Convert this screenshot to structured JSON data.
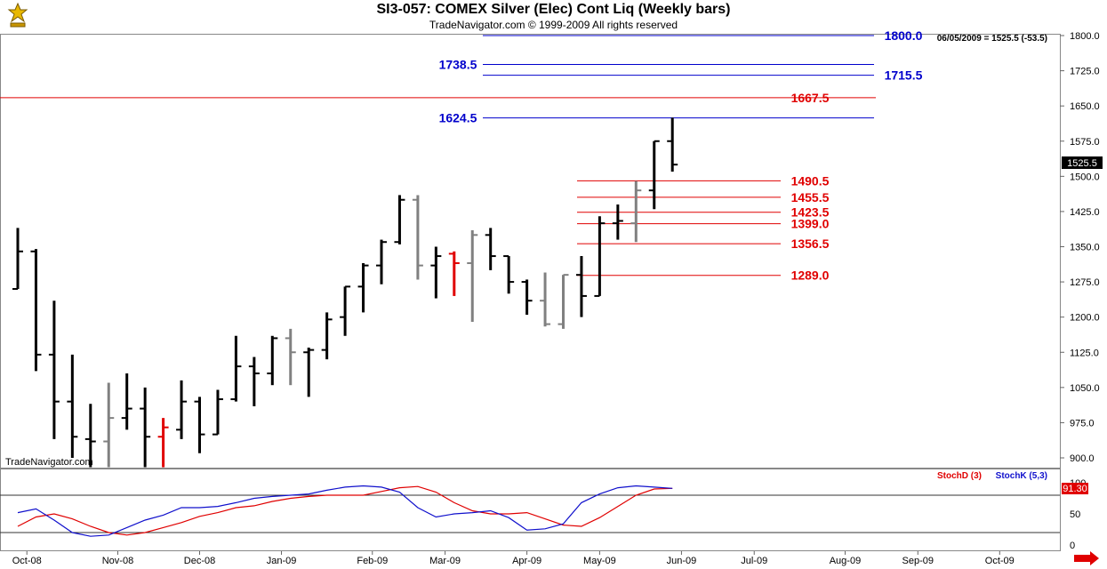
{
  "header": {
    "title": "SI3-057:  COMEX Silver (Elec) Cont Liq  (Weekly bars)",
    "subtitle": "TradeNavigator.com © 1999-2009 All rights reserved"
  },
  "watermark": "TradeNavigator.com",
  "chart_data": [
    {
      "type": "ohlc",
      "price_readout": "06/05/2009 = 1525.5 (-53.5)",
      "last_price_label": "1525.5",
      "ylim": [
        880,
        1810
      ],
      "y_ticks": [
        "1800.0",
        "1725.0",
        "1650.0",
        "1575.0",
        "1500.0",
        "1425.0",
        "1350.0",
        "1275.0",
        "1200.0",
        "1125.0",
        "1050.0",
        "975.0",
        "900.0"
      ],
      "x_ticks": [
        {
          "label": "Oct-08",
          "week": 1
        },
        {
          "label": "Nov-08",
          "week": 6
        },
        {
          "label": "Dec-08",
          "week": 10.5
        },
        {
          "label": "Jan-09",
          "week": 15
        },
        {
          "label": "Feb-09",
          "week": 20
        },
        {
          "label": "Mar-09",
          "week": 24
        },
        {
          "label": "Apr-09",
          "week": 28.5
        },
        {
          "label": "May-09",
          "week": 32.5
        },
        {
          "label": "Jun-09",
          "week": 37
        },
        {
          "label": "Jul-09",
          "week": 41
        },
        {
          "label": "Aug-09",
          "week": 46
        },
        {
          "label": "Sep-09",
          "week": 50
        },
        {
          "label": "Oct-09",
          "week": 54.5
        }
      ],
      "bars": [
        {
          "o": 1260,
          "h": 1390,
          "l": 1260,
          "c": 1340,
          "color": "black"
        },
        {
          "o": 1340,
          "h": 1345,
          "l": 1085,
          "c": 1120,
          "color": "black"
        },
        {
          "o": 1120,
          "h": 1235,
          "l": 940,
          "c": 1020,
          "color": "black"
        },
        {
          "o": 1020,
          "h": 1120,
          "l": 900,
          "c": 945,
          "color": "black"
        },
        {
          "o": 940,
          "h": 1015,
          "l": 880,
          "c": 935,
          "color": "black"
        },
        {
          "o": 935,
          "h": 1060,
          "l": 880,
          "c": 985,
          "color": "gray"
        },
        {
          "o": 985,
          "h": 1080,
          "l": 960,
          "c": 1005,
          "color": "black"
        },
        {
          "o": 1005,
          "h": 1050,
          "l": 880,
          "c": 945,
          "color": "black"
        },
        {
          "o": 945,
          "h": 985,
          "l": 880,
          "c": 965,
          "color": "red"
        },
        {
          "o": 960,
          "h": 1065,
          "l": 940,
          "c": 1020,
          "color": "black"
        },
        {
          "o": 1020,
          "h": 1030,
          "l": 910,
          "c": 950,
          "color": "black"
        },
        {
          "o": 950,
          "h": 1045,
          "l": 950,
          "c": 1025,
          "color": "black"
        },
        {
          "o": 1025,
          "h": 1160,
          "l": 1020,
          "c": 1095,
          "color": "black"
        },
        {
          "o": 1095,
          "h": 1115,
          "l": 1010,
          "c": 1080,
          "color": "black"
        },
        {
          "o": 1080,
          "h": 1160,
          "l": 1055,
          "c": 1155,
          "color": "black"
        },
        {
          "o": 1155,
          "h": 1175,
          "l": 1055,
          "c": 1125,
          "color": "gray"
        },
        {
          "o": 1125,
          "h": 1135,
          "l": 1030,
          "c": 1130,
          "color": "black"
        },
        {
          "o": 1130,
          "h": 1210,
          "l": 1110,
          "c": 1195,
          "color": "black"
        },
        {
          "o": 1200,
          "h": 1265,
          "l": 1160,
          "c": 1265,
          "color": "black"
        },
        {
          "o": 1265,
          "h": 1315,
          "l": 1210,
          "c": 1310,
          "color": "black"
        },
        {
          "o": 1310,
          "h": 1365,
          "l": 1270,
          "c": 1360,
          "color": "black"
        },
        {
          "o": 1360,
          "h": 1460,
          "l": 1355,
          "c": 1450,
          "color": "black"
        },
        {
          "o": 1450,
          "h": 1460,
          "l": 1280,
          "c": 1310,
          "color": "gray"
        },
        {
          "o": 1310,
          "h": 1350,
          "l": 1240,
          "c": 1330,
          "color": "black"
        },
        {
          "o": 1335,
          "h": 1340,
          "l": 1245,
          "c": 1315,
          "color": "red"
        },
        {
          "o": 1315,
          "h": 1385,
          "l": 1190,
          "c": 1375,
          "color": "gray"
        },
        {
          "o": 1375,
          "h": 1390,
          "l": 1300,
          "c": 1330,
          "color": "black"
        },
        {
          "o": 1330,
          "h": 1330,
          "l": 1250,
          "c": 1275,
          "color": "black"
        },
        {
          "o": 1275,
          "h": 1280,
          "l": 1205,
          "c": 1235,
          "color": "black"
        },
        {
          "o": 1235,
          "h": 1295,
          "l": 1180,
          "c": 1185,
          "color": "gray"
        },
        {
          "o": 1185,
          "h": 1290,
          "l": 1175,
          "c": 1290,
          "color": "gray"
        },
        {
          "o": 1290,
          "h": 1330,
          "l": 1200,
          "c": 1245,
          "color": "black"
        },
        {
          "o": 1245,
          "h": 1415,
          "l": 1245,
          "c": 1400,
          "color": "black"
        },
        {
          "o": 1400,
          "h": 1440,
          "l": 1365,
          "c": 1405,
          "color": "black"
        },
        {
          "o": 1400,
          "h": 1490,
          "l": 1360,
          "c": 1470,
          "color": "gray"
        },
        {
          "o": 1470,
          "h": 1575,
          "l": 1430,
          "c": 1575,
          "color": "black"
        },
        {
          "o": 1575,
          "h": 1625,
          "l": 1510,
          "c": 1525,
          "color": "black"
        }
      ],
      "levels": [
        {
          "label": "1800.0",
          "value": 1800.0,
          "color": "#0000cc",
          "label_side": "right"
        },
        {
          "label": "1738.5",
          "value": 1738.5,
          "color": "#0000cc",
          "label_side": "left"
        },
        {
          "label": "1715.5",
          "value": 1715.5,
          "color": "#0000cc",
          "label_side": "right"
        },
        {
          "label": "1667.5",
          "value": 1667.5,
          "color": "#e00000",
          "label_side": "right"
        },
        {
          "label": "1624.5",
          "value": 1624.5,
          "color": "#0000cc",
          "label_side": "left"
        },
        {
          "label": "1490.5",
          "value": 1490.5,
          "color": "#e00000",
          "label_side": "right"
        },
        {
          "label": "1455.5",
          "value": 1455.5,
          "color": "#e00000",
          "label_side": "right"
        },
        {
          "label": "1423.5",
          "value": 1423.5,
          "color": "#e00000",
          "label_side": "right"
        },
        {
          "label": "1399.0",
          "value": 1399.0,
          "color": "#e00000",
          "label_side": "right"
        },
        {
          "label": "1356.5",
          "value": 1356.5,
          "color": "#e00000",
          "label_side": "right"
        },
        {
          "label": "1289.0",
          "value": 1289.0,
          "color": "#e00000",
          "label_side": "right"
        }
      ]
    },
    {
      "type": "line",
      "ylim": [
        0,
        100
      ],
      "y_ticks": [
        "100",
        "50",
        "0"
      ],
      "reference_lines": [
        80,
        20
      ],
      "last_value_label": "91.30",
      "series": [
        {
          "name": "StochD (3)",
          "color": "#e00000",
          "values": [
            30,
            45,
            50,
            42,
            30,
            20,
            16,
            20,
            28,
            36,
            46,
            52,
            60,
            63,
            70,
            75,
            78,
            80,
            80,
            80,
            86,
            92,
            94,
            85,
            68,
            55,
            50,
            50,
            52,
            42,
            32,
            30,
            44,
            62,
            80,
            90,
            91
          ]
        },
        {
          "name": "StochK (5,3)",
          "color": "#1010cc",
          "values": [
            52,
            58,
            40,
            20,
            14,
            16,
            28,
            40,
            48,
            60,
            60,
            62,
            68,
            75,
            78,
            80,
            82,
            88,
            93,
            95,
            93,
            85,
            60,
            45,
            50,
            52,
            55,
            44,
            24,
            26,
            34,
            68,
            82,
            92,
            95,
            93,
            91
          ]
        }
      ]
    }
  ]
}
